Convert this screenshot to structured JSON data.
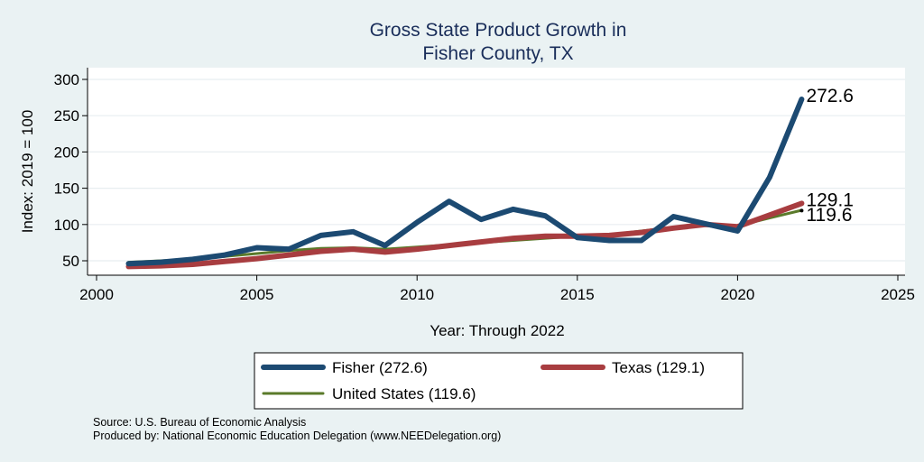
{
  "chart_data": {
    "type": "line",
    "title_lines": [
      "Gross State Product Growth in",
      "Fisher County, TX"
    ],
    "xlabel": "Year: Through 2022",
    "ylabel": "Index: 2019 = 100",
    "xlim": [
      2000,
      2025
    ],
    "ylim": [
      40,
      310
    ],
    "xticks": [
      2000,
      2005,
      2010,
      2015,
      2020,
      2025
    ],
    "yticks": [
      50,
      100,
      150,
      200,
      250,
      300
    ],
    "grid": "horizontal",
    "x": [
      2001,
      2002,
      2003,
      2004,
      2005,
      2006,
      2007,
      2008,
      2009,
      2010,
      2011,
      2012,
      2013,
      2014,
      2015,
      2016,
      2017,
      2018,
      2019,
      2020,
      2021,
      2022
    ],
    "series": [
      {
        "name": "Fisher",
        "legend": "Fisher  (272.6)",
        "end_label": "272.6",
        "color": "#1c4a72",
        "values": [
          46,
          48,
          52,
          58,
          68,
          66,
          85,
          90,
          71,
          103,
          132,
          107,
          121,
          112,
          82,
          78,
          78,
          111,
          101,
          91,
          165,
          272.6
        ]
      },
      {
        "name": "Texas",
        "legend": "Texas (129.1)",
        "end_label": "129.1",
        "color": "#a83d40",
        "values": [
          42,
          43,
          45,
          49,
          53,
          58,
          63,
          66,
          62,
          66,
          71,
          76,
          81,
          84,
          84,
          85,
          89,
          95,
          100,
          97,
          113,
          129.1
        ]
      },
      {
        "name": "United States",
        "legend": "United States (119.6)",
        "end_label": "119.6",
        "color": "#5a7a2a",
        "values": [
          48,
          50,
          52,
          56,
          60,
          64,
          67,
          68,
          66,
          69,
          72,
          75,
          78,
          81,
          84,
          86,
          91,
          96,
          100,
          98,
          109,
          119.6
        ]
      }
    ]
  },
  "notes": {
    "source": "Source: U.S. Bureau of Economic Analysis",
    "produced_by": "Produced by: National Economic Education Delegation (www.NEEDelegation.org)"
  }
}
